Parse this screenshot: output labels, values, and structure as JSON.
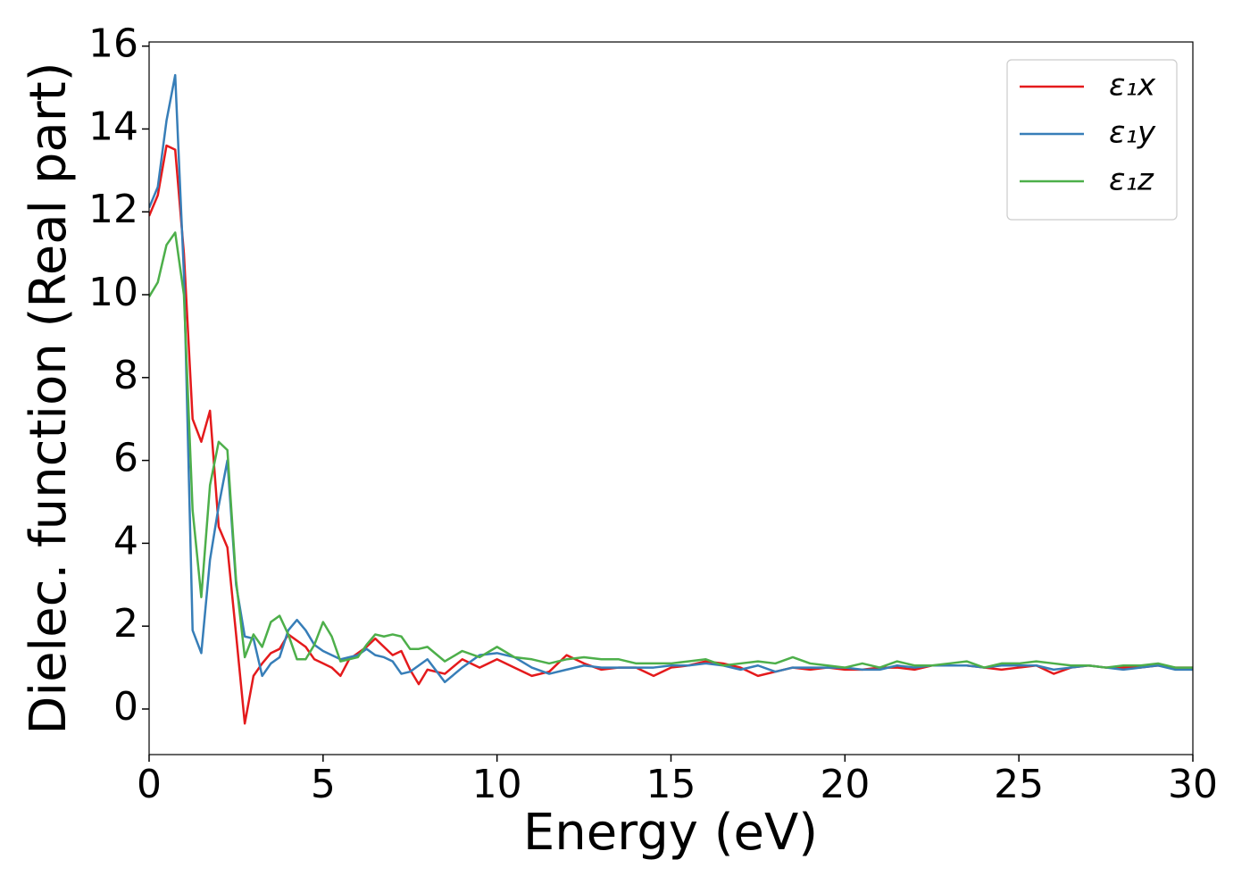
{
  "chart_data": {
    "type": "line",
    "xlabel": "Energy (eV)",
    "ylabel": "Dielec. function (Real part)",
    "x": [
      0,
      0.25,
      0.5,
      0.75,
      1,
      1.25,
      1.5,
      1.75,
      2,
      2.25,
      2.5,
      2.75,
      3,
      3.25,
      3.5,
      3.75,
      4,
      4.25,
      4.5,
      4.75,
      5,
      5.25,
      5.5,
      5.75,
      6,
      6.25,
      6.5,
      6.75,
      7,
      7.25,
      7.5,
      7.75,
      8,
      8.5,
      9,
      9.5,
      10,
      10.5,
      11,
      11.5,
      12,
      12.5,
      13,
      13.5,
      14,
      14.5,
      15,
      15.5,
      16,
      16.5,
      17,
      17.5,
      18,
      18.5,
      19,
      19.5,
      20,
      20.5,
      21,
      21.5,
      22,
      22.5,
      23,
      23.5,
      24,
      24.5,
      25,
      25.5,
      26,
      26.5,
      27,
      27.5,
      28,
      28.5,
      29,
      29.5,
      30
    ],
    "series": [
      {
        "name": "ε₁x",
        "color": "#e41a1c",
        "values": [
          11.9,
          12.4,
          13.6,
          13.5,
          11.0,
          7.0,
          6.45,
          7.2,
          4.4,
          3.9,
          1.8,
          -0.35,
          0.8,
          1.1,
          1.35,
          1.45,
          1.8,
          1.65,
          1.5,
          1.2,
          1.1,
          1.0,
          0.8,
          1.2,
          1.35,
          1.5,
          1.7,
          1.5,
          1.3,
          1.4,
          0.95,
          0.6,
          0.95,
          0.85,
          1.2,
          1.0,
          1.2,
          1.0,
          0.8,
          0.9,
          1.3,
          1.1,
          0.95,
          1.0,
          1.0,
          0.8,
          1.0,
          1.05,
          1.15,
          1.1,
          1.0,
          0.8,
          0.9,
          1.0,
          0.95,
          1.0,
          0.95,
          0.95,
          1.0,
          1.0,
          0.95,
          1.05,
          1.05,
          1.05,
          1.0,
          0.95,
          1.0,
          1.05,
          0.85,
          1.0,
          1.05,
          1.0,
          1.0,
          1.0,
          1.05,
          1.0,
          1.0
        ]
      },
      {
        "name": "ε₁y",
        "color": "#377eb8",
        "values": [
          12.1,
          12.6,
          14.2,
          15.3,
          10.5,
          1.9,
          1.35,
          3.6,
          4.9,
          6.0,
          3.0,
          1.75,
          1.7,
          0.8,
          1.1,
          1.25,
          1.9,
          2.15,
          1.9,
          1.55,
          1.4,
          1.3,
          1.2,
          1.25,
          1.3,
          1.45,
          1.3,
          1.25,
          1.15,
          0.85,
          0.9,
          1.05,
          1.2,
          0.65,
          1.0,
          1.3,
          1.35,
          1.25,
          1.0,
          0.85,
          0.95,
          1.05,
          1.0,
          1.0,
          1.0,
          1.0,
          1.05,
          1.05,
          1.1,
          1.05,
          0.95,
          1.05,
          0.9,
          1.0,
          1.0,
          1.0,
          1.0,
          0.95,
          0.95,
          1.05,
          1.0,
          1.05,
          1.05,
          1.05,
          1.0,
          1.05,
          1.05,
          1.05,
          0.95,
          1.0,
          1.05,
          1.0,
          0.95,
          1.0,
          1.05,
          0.95,
          0.95
        ]
      },
      {
        "name": "ε₁z",
        "color": "#4daf4a",
        "values": [
          9.95,
          10.3,
          11.2,
          11.5,
          10.0,
          4.8,
          2.7,
          5.4,
          6.45,
          6.25,
          3.1,
          1.25,
          1.8,
          1.5,
          2.1,
          2.25,
          1.8,
          1.2,
          1.2,
          1.55,
          2.1,
          1.75,
          1.15,
          1.2,
          1.25,
          1.55,
          1.8,
          1.75,
          1.8,
          1.75,
          1.45,
          1.45,
          1.5,
          1.15,
          1.4,
          1.25,
          1.5,
          1.25,
          1.2,
          1.1,
          1.2,
          1.25,
          1.2,
          1.2,
          1.1,
          1.1,
          1.1,
          1.15,
          1.2,
          1.05,
          1.1,
          1.15,
          1.1,
          1.25,
          1.1,
          1.05,
          1.0,
          1.1,
          1.0,
          1.15,
          1.05,
          1.05,
          1.1,
          1.15,
          1.0,
          1.1,
          1.1,
          1.15,
          1.1,
          1.05,
          1.05,
          1.0,
          1.05,
          1.05,
          1.1,
          1.0,
          1.0
        ]
      }
    ],
    "xlim": [
      0,
      30
    ],
    "xticks": [
      0,
      5,
      10,
      15,
      20,
      25,
      30
    ],
    "ylim": [
      -1.1,
      16.1
    ],
    "yticks": [
      0,
      2,
      4,
      6,
      8,
      10,
      12,
      14,
      16
    ],
    "grid": false,
    "legend": "upper right"
  }
}
